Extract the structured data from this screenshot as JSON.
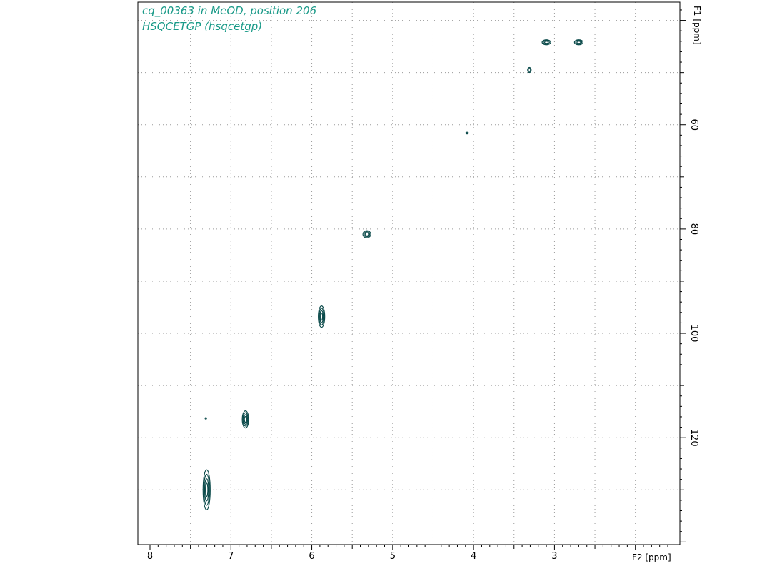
{
  "header": {
    "line1": "cq_00363 in MeOD, position 206",
    "line2": "HSQCETGP (hsqcetgp)",
    "color": "#1a9a88"
  },
  "chart_data": {
    "type": "scatter",
    "subtype": "2D NMR HSQC contour plot",
    "xlabel": "F2 [ppm]",
    "ylabel": "F1 [ppm]",
    "xlim": [
      8.15,
      1.45
    ],
    "ylim": [
      140.5,
      36.5
    ],
    "x_ticks": [
      8,
      7,
      6,
      5,
      4,
      3
    ],
    "x_tick_labels": [
      "8",
      "7",
      "6",
      "5",
      "4",
      "3"
    ],
    "y_ticks": [
      60,
      80,
      100,
      120
    ],
    "y_tick_labels": [
      "60",
      "80",
      "100",
      "120"
    ],
    "grid": true,
    "contour_color": "#0b4a4a",
    "peaks": [
      {
        "x": 2.7,
        "y": 44.2
      },
      {
        "x": 3.1,
        "y": 44.2
      },
      {
        "x": 3.31,
        "y": 49.5
      },
      {
        "x": 4.08,
        "y": 61.6
      },
      {
        "x": 5.32,
        "y": 81.0
      },
      {
        "x": 5.88,
        "y": 96.8
      },
      {
        "x": 6.82,
        "y": 116.5
      },
      {
        "x": 7.31,
        "y": 116.3
      },
      {
        "x": 7.3,
        "y": 130.0
      }
    ]
  }
}
